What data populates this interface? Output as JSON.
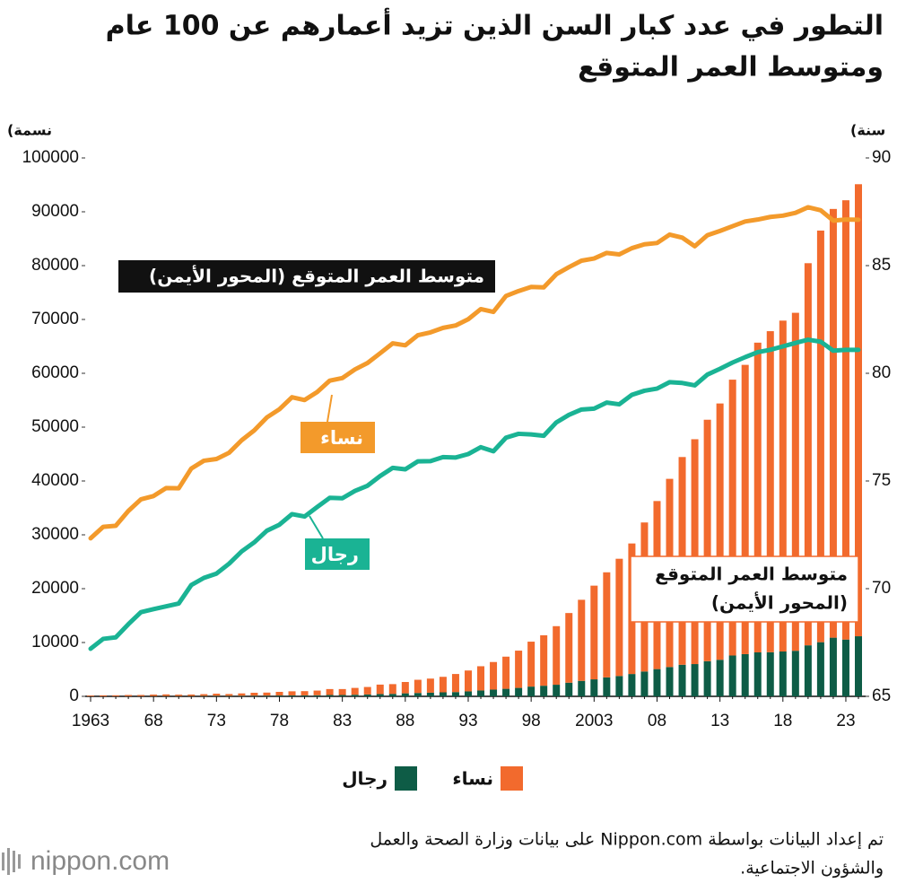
{
  "chart_data": {
    "type": "bar-line",
    "title": [
      "التطور في عدد كبار السن الذين تزيد أعمارهم عن 100 عام",
      "ومتوسط العمر المتوقع"
    ],
    "ylabel": "(نسمة",
    "y2label": "(سنة",
    "annotations": [
      "متوسط العمر المتوقع (المحور الأيمن)",
      "متوسط العمر المتوقع",
      "(المحور الأيمن)"
    ],
    "source": [
      "تم إعداد البيانات بواسطة Nippon.com على بيانات وزارة الصحة والعمل",
      "والشؤون الاجتماعية."
    ],
    "logo": "nippon.com",
    "categories": [
      "1963",
      null,
      null,
      null,
      null,
      "68",
      null,
      null,
      null,
      null,
      "73",
      null,
      null,
      null,
      null,
      "78",
      null,
      null,
      null,
      null,
      "83",
      null,
      null,
      null,
      null,
      "88",
      null,
      null,
      null,
      null,
      "93",
      null,
      null,
      null,
      null,
      "98",
      null,
      null,
      null,
      null,
      "2003",
      null,
      null,
      null,
      null,
      "08",
      null,
      null,
      null,
      null,
      "13",
      null,
      null,
      null,
      null,
      "18",
      null,
      null,
      null,
      null,
      "23",
      null
    ],
    "ylim": [
      0,
      100000
    ],
    "yticks": [
      0,
      10000,
      20000,
      30000,
      40000,
      50000,
      60000,
      70000,
      80000,
      90000,
      100000
    ],
    "y2lim": [
      65,
      90
    ],
    "y2ticks": [
      65,
      70,
      75,
      80,
      85,
      90
    ],
    "series": [
      {
        "name": "رجال",
        "kind": "bar",
        "color": "#0e5c46",
        "values": [
          20,
          22,
          28,
          36,
          40,
          52,
          60,
          60,
          64,
          78,
          95,
          85,
          102,
          120,
          135,
          155,
          170,
          174,
          203,
          250,
          250,
          300,
          359,
          430,
          462,
          562,
          630,
          680,
          749,
          795,
          924,
          1094,
          1255,
          1400,
          1570,
          1812,
          1973,
          2158,
          2541,
          2875,
          3159,
          3523,
          3779,
          4150,
          4613,
          5063,
          5447,
          5869,
          5994,
          6534,
          6791,
          7586,
          7840,
          8167,
          8197,
          8331,
          8463,
          9475,
          10060,
          10897,
          10550,
          11161
        ]
      },
      {
        "name": "نساء",
        "kind": "bar",
        "color": "#f26a2d",
        "values": [
          133,
          169,
          170,
          216,
          215,
          275,
          305,
          250,
          275,
          327,
          400,
          342,
          446,
          546,
          565,
          677,
          767,
          794,
          869,
          1104,
          1104,
          1267,
          1381,
          1753,
          1809,
          2106,
          2448,
          2618,
          2876,
          3357,
          3878,
          4499,
          5123,
          5973,
          6921,
          8346,
          9373,
          10878,
          12934,
          15059,
          17402,
          19515,
          21775,
          24245,
          27682,
          31213,
          34952,
          38580,
          41762,
          44842,
          47606,
          51234,
          53728,
          57525,
          59627,
          61454,
          62775,
          70975,
          76450,
          79629,
          81589,
          83958
        ]
      },
      {
        "name": "نساء",
        "kind": "line",
        "axis": "y2",
        "color": "#f39a2b",
        "values": [
          72.34,
          72.87,
          72.92,
          73.61,
          74.15,
          74.3,
          74.67,
          74.66,
          75.58,
          75.94,
          76.02,
          76.31,
          76.89,
          77.35,
          77.95,
          78.33,
          78.89,
          78.76,
          79.13,
          79.66,
          79.78,
          80.18,
          80.48,
          80.93,
          81.39,
          81.3,
          81.77,
          81.9,
          82.11,
          82.22,
          82.51,
          82.98,
          82.85,
          83.59,
          83.82,
          84.01,
          83.99,
          84.6,
          84.93,
          85.23,
          85.33,
          85.59,
          85.52,
          85.81,
          85.99,
          86.05,
          86.44,
          86.3,
          85.9,
          86.41,
          86.61,
          86.83,
          87.05,
          87.14,
          87.26,
          87.32,
          87.45,
          87.71,
          87.57,
          87.09,
          87.14,
          87.13
        ]
      },
      {
        "name": "رجال",
        "kind": "line",
        "axis": "y2",
        "color": "#1ab394",
        "values": [
          67.21,
          67.67,
          67.74,
          68.35,
          68.91,
          69.05,
          69.18,
          69.31,
          70.17,
          70.5,
          70.7,
          71.16,
          71.73,
          72.15,
          72.69,
          72.97,
          73.46,
          73.35,
          73.79,
          74.22,
          74.2,
          74.54,
          74.78,
          75.23,
          75.61,
          75.54,
          75.91,
          75.92,
          76.11,
          76.09,
          76.25,
          76.57,
          76.38,
          77.01,
          77.19,
          77.16,
          77.1,
          77.72,
          78.07,
          78.32,
          78.36,
          78.64,
          78.56,
          79.0,
          79.19,
          79.29,
          79.59,
          79.55,
          79.44,
          79.94,
          80.21,
          80.5,
          80.75,
          80.98,
          81.09,
          81.25,
          81.41,
          81.56,
          81.47,
          81.05,
          81.09,
          81.09
        ]
      }
    ]
  }
}
